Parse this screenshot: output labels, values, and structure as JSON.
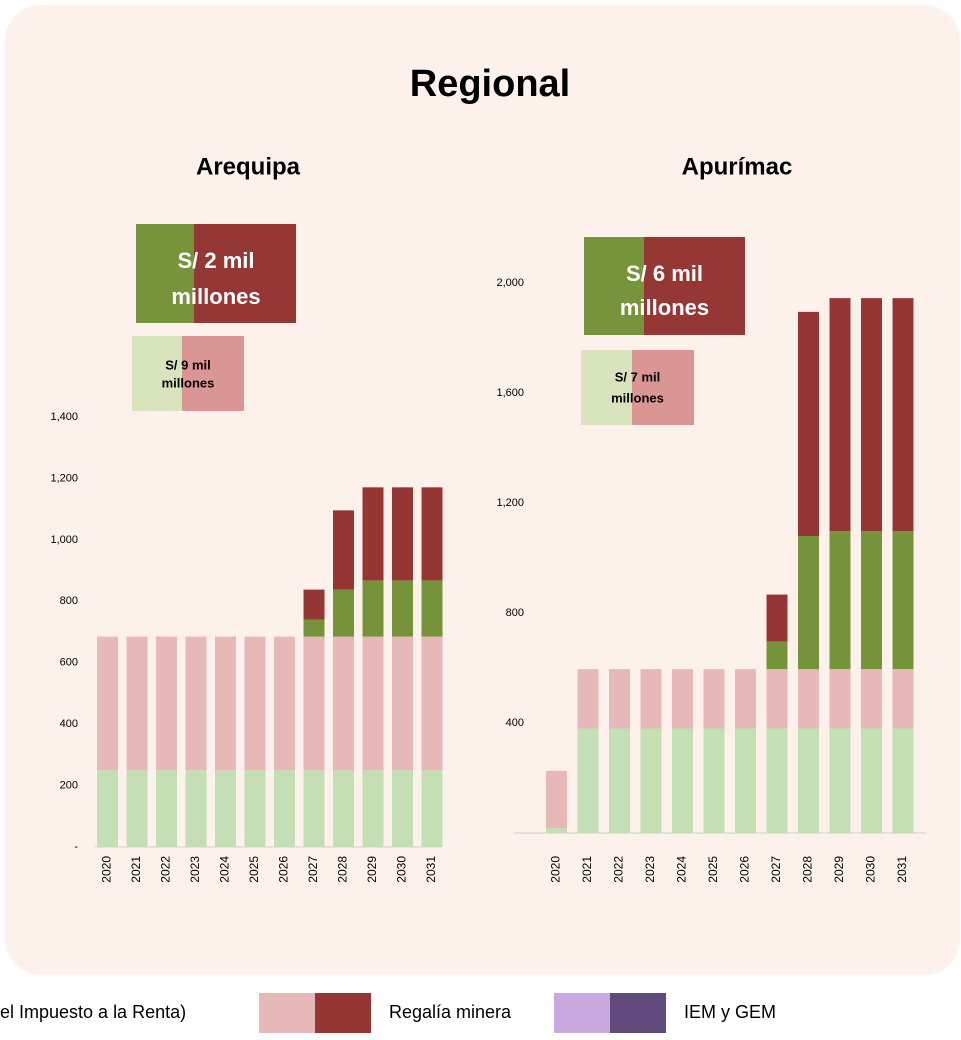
{
  "chart_data": [
    {
      "type": "bar",
      "stacked": true,
      "title": "Arequipa",
      "categories": [
        "2020",
        "2021",
        "2022",
        "2023",
        "2024",
        "2025",
        "2026",
        "2027",
        "2028",
        "2029",
        "2030",
        "2031"
      ],
      "series": [
        {
          "color": "#c4dfb3",
          "values": [
            250,
            250,
            250,
            250,
            250,
            250,
            250,
            250,
            250,
            250,
            250,
            250
          ]
        },
        {
          "color": "#e6b8b7",
          "values": [
            435,
            435,
            435,
            435,
            435,
            435,
            435,
            435,
            435,
            435,
            435,
            435
          ]
        },
        {
          "color": "#76933c",
          "values": [
            0,
            0,
            0,
            0,
            0,
            0,
            0,
            55,
            153,
            183,
            183,
            183
          ]
        },
        {
          "color": "#963634",
          "values": [
            0,
            0,
            0,
            0,
            0,
            0,
            0,
            98,
            258,
            303,
            303,
            303
          ]
        }
      ],
      "ylim": [
        0,
        1400
      ],
      "yticks": [
        {
          "value": 0,
          "label": "-"
        },
        200,
        400,
        600,
        800,
        {
          "value": 1000,
          "label": "1,000"
        },
        {
          "value": 1200,
          "label": "1,200"
        },
        {
          "value": 1400,
          "label": "1,400"
        }
      ],
      "annotations": [
        {
          "lines": [
            "S/ 2 mil",
            "millones"
          ],
          "colors": [
            "#77933c",
            "#953735"
          ]
        },
        {
          "lines": [
            "S/ 9 mil",
            "millones"
          ],
          "colors": [
            "#d8e4bc",
            "#da9694"
          ]
        }
      ]
    },
    {
      "type": "bar",
      "stacked": true,
      "title": "Apurímac",
      "categories": [
        "2020",
        "2021",
        "2022",
        "2023",
        "2024",
        "2025",
        "2026",
        "2027",
        "2028",
        "2029",
        "2030",
        "2031"
      ],
      "series": [
        {
          "color": "#c4dfb3",
          "values": [
            18,
            380,
            380,
            380,
            380,
            380,
            380,
            380,
            380,
            380,
            380,
            380
          ]
        },
        {
          "color": "#e6b8b7",
          "values": [
            208,
            216,
            216,
            216,
            216,
            216,
            216,
            216,
            216,
            216,
            216,
            216
          ]
        },
        {
          "color": "#76933c",
          "values": [
            0,
            0,
            0,
            0,
            0,
            0,
            0,
            100,
            484,
            502,
            502,
            502
          ]
        },
        {
          "color": "#963634",
          "values": [
            0,
            0,
            0,
            0,
            0,
            0,
            0,
            171,
            815,
            847,
            847,
            847
          ]
        }
      ],
      "ylim": [
        0,
        2000
      ],
      "yticks": [
        {
          "value": 0,
          "label": "-"
        },
        400,
        800,
        {
          "value": 1200,
          "label": "1,200"
        },
        {
          "value": 1600,
          "label": "1,600"
        },
        {
          "value": 2000,
          "label": "2,000"
        }
      ],
      "annotations": [
        {
          "lines": [
            "S/ 6 mil",
            "millones"
          ],
          "colors": [
            "#77933c",
            "#953735"
          ]
        },
        {
          "lines": [
            "S/ 7 mil",
            "millones"
          ],
          "colors": [
            "#d8e4bc",
            "#da9694"
          ]
        }
      ]
    }
  ],
  "title": "Regional",
  "legend": [
    {
      "label": "el Impuesto a la Renta)"
    },
    {
      "label": "Regalía minera",
      "colors": [
        "#e6b8b7",
        "#963634"
      ]
    },
    {
      "label": "IEM y GEM",
      "colors": [
        "#c9a9e0",
        "#604a7b"
      ]
    }
  ]
}
